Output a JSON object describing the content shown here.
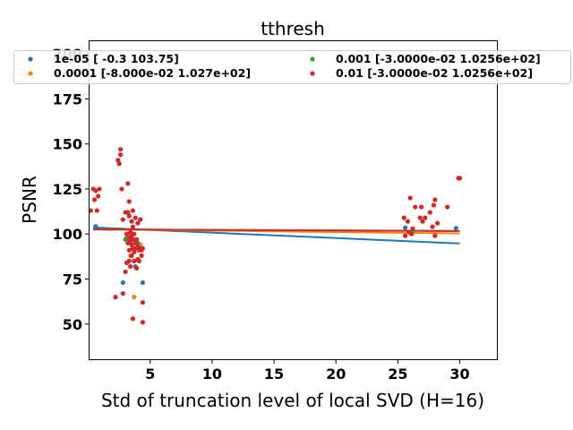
{
  "chart_data": {
    "type": "scatter",
    "title": "tthresh",
    "xlabel": "Std of truncation level of local SVD (H=16)",
    "ylabel": "PSNR",
    "xlim": [
      0.1,
      33
    ],
    "ylim": [
      30.5,
      207
    ],
    "xticks": [
      5,
      10,
      15,
      20,
      25,
      30
    ],
    "yticks": [
      50,
      75,
      100,
      125,
      150,
      175,
      200
    ],
    "grid": false,
    "legend_position": "top",
    "legend_columns": 2,
    "series": [
      {
        "name": "1e-05 [ -0.3  103.75]",
        "color": "#1f77b4",
        "points": [
          [
            0.6,
            104.2
          ],
          [
            2.8,
            73.0
          ],
          [
            3.3,
            96.0
          ],
          [
            3.6,
            92.0
          ],
          [
            3.8,
            82.0
          ],
          [
            4.4,
            73.0
          ],
          [
            25.6,
            103.5
          ],
          [
            29.7,
            103.2
          ]
        ],
        "fit": {
          "slope": -0.3,
          "intercept": 103.75
        }
      },
      {
        "name": "0.0001 [-8.000e-02  1.027e+02]",
        "color": "#ff7f0e",
        "points": [
          [
            3.1,
            98.0
          ],
          [
            3.4,
            88.0
          ],
          [
            3.7,
            65.0
          ],
          [
            4.2,
            94.0
          ],
          [
            26.0,
            101.0
          ]
        ],
        "fit": {
          "slope": -0.08,
          "intercept": 102.7
        }
      },
      {
        "name": "0.001 [-3.0000e-02  1.0256e+02]",
        "color": "#2ca02c",
        "points": [
          [
            3.0,
            97.0
          ],
          [
            3.5,
            100.0
          ],
          [
            4.0,
            95.0
          ],
          [
            26.2,
            102.0
          ]
        ],
        "fit": {
          "slope": -0.03,
          "intercept": 102.56
        }
      },
      {
        "name": "0.01 [-3.0000e-02  1.0256e+02]",
        "color": "#d62728",
        "points": [
          [
            0.2,
            113.0
          ],
          [
            0.4,
            125.0
          ],
          [
            0.5,
            119.0
          ],
          [
            0.6,
            124.0
          ],
          [
            0.7,
            113.0
          ],
          [
            0.8,
            121.0
          ],
          [
            0.9,
            125.0
          ],
          [
            2.2,
            65.0
          ],
          [
            2.4,
            141.0
          ],
          [
            2.5,
            139.0
          ],
          [
            2.6,
            147.0
          ],
          [
            2.6,
            144.0
          ],
          [
            2.7,
            125.0
          ],
          [
            2.8,
            108.0
          ],
          [
            2.8,
            67.0
          ],
          [
            3.0,
            112.0
          ],
          [
            3.0,
            79.0
          ],
          [
            3.1,
            100.0
          ],
          [
            3.1,
            84.0
          ],
          [
            3.2,
            128.0
          ],
          [
            3.2,
            112.0
          ],
          [
            3.2,
            95.0
          ],
          [
            3.3,
            118.0
          ],
          [
            3.3,
            110.0
          ],
          [
            3.3,
            98.0
          ],
          [
            3.3,
            91.0
          ],
          [
            3.3,
            85.0
          ],
          [
            3.4,
            101.0
          ],
          [
            3.4,
            96.0
          ],
          [
            3.4,
            82.0
          ],
          [
            3.5,
            107.0
          ],
          [
            3.5,
            99.0
          ],
          [
            3.5,
            94.0
          ],
          [
            3.5,
            88.0
          ],
          [
            3.6,
            113.0
          ],
          [
            3.6,
            104.0
          ],
          [
            3.6,
            97.0
          ],
          [
            3.6,
            92.0
          ],
          [
            3.6,
            53.0
          ],
          [
            3.7,
            100.0
          ],
          [
            3.7,
            90.0
          ],
          [
            3.7,
            85.0
          ],
          [
            3.8,
            109.0
          ],
          [
            3.8,
            95.0
          ],
          [
            3.8,
            92.0
          ],
          [
            3.9,
            97.0
          ],
          [
            3.9,
            81.0
          ],
          [
            4.0,
            106.0
          ],
          [
            4.0,
            93.0
          ],
          [
            4.0,
            86.0
          ],
          [
            4.1,
            91.0
          ],
          [
            4.1,
            85.0
          ],
          [
            4.2,
            108.0
          ],
          [
            4.2,
            92.0
          ],
          [
            4.3,
            88.0
          ],
          [
            4.3,
            91.0
          ],
          [
            4.4,
            92.0
          ],
          [
            4.4,
            62.0
          ],
          [
            4.4,
            51.0
          ],
          [
            25.5,
            109.0
          ],
          [
            25.6,
            99.0
          ],
          [
            25.8,
            107.0
          ],
          [
            25.9,
            101.0
          ],
          [
            26.0,
            120.0
          ],
          [
            26.1,
            100.0
          ],
          [
            26.2,
            103.0
          ],
          [
            26.4,
            115.0
          ],
          [
            26.8,
            109.0
          ],
          [
            26.9,
            115.0
          ],
          [
            27.0,
            107.0
          ],
          [
            27.2,
            109.0
          ],
          [
            27.6,
            112.0
          ],
          [
            27.8,
            104.0
          ],
          [
            27.9,
            116.0
          ],
          [
            28.0,
            99.0
          ],
          [
            28.0,
            119.0
          ],
          [
            28.2,
            106.0
          ],
          [
            29.0,
            115.0
          ],
          [
            29.9,
            131.0
          ],
          [
            30.0,
            131.0
          ]
        ],
        "fit": {
          "slope": -0.03,
          "intercept": 102.56
        }
      }
    ]
  }
}
